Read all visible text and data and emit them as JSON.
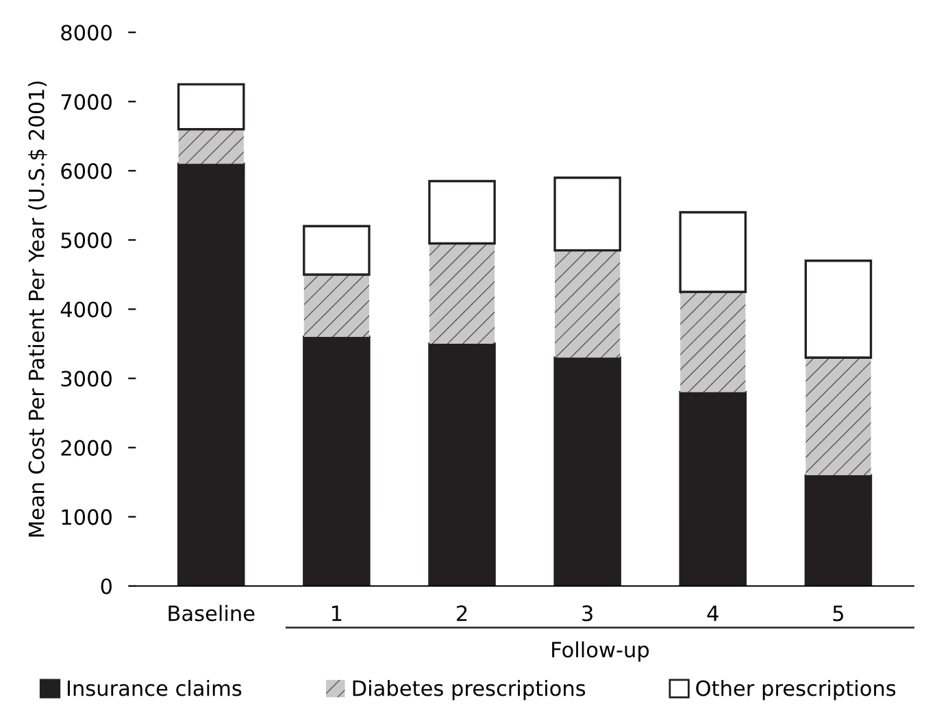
{
  "chart_data": {
    "type": "bar",
    "stacked": true,
    "ylabel": "Mean Cost Per Patient Per Year (U.S.$ 2001)",
    "categories": [
      "Baseline",
      "1",
      "2",
      "3",
      "4",
      "5"
    ],
    "series": [
      {
        "name": "Insurance claims",
        "color": "#231f20",
        "values": [
          6100,
          3600,
          3500,
          3300,
          2800,
          1600
        ]
      },
      {
        "name": "Diabetes prescriptions",
        "color": "#c8c8c8",
        "values": [
          500,
          900,
          1450,
          1550,
          1450,
          1700
        ]
      },
      {
        "name": "Other prescriptions",
        "color": "#ffffff",
        "values": [
          650,
          700,
          900,
          1050,
          1150,
          1400
        ]
      }
    ],
    "annotations": [
      "Follow-up"
    ],
    "ylim": [
      0,
      8000
    ],
    "yticks": [
      0,
      1000,
      2000,
      3000,
      4000,
      5000,
      6000,
      7000,
      8000
    ],
    "grid": false,
    "legend": "bottom"
  }
}
